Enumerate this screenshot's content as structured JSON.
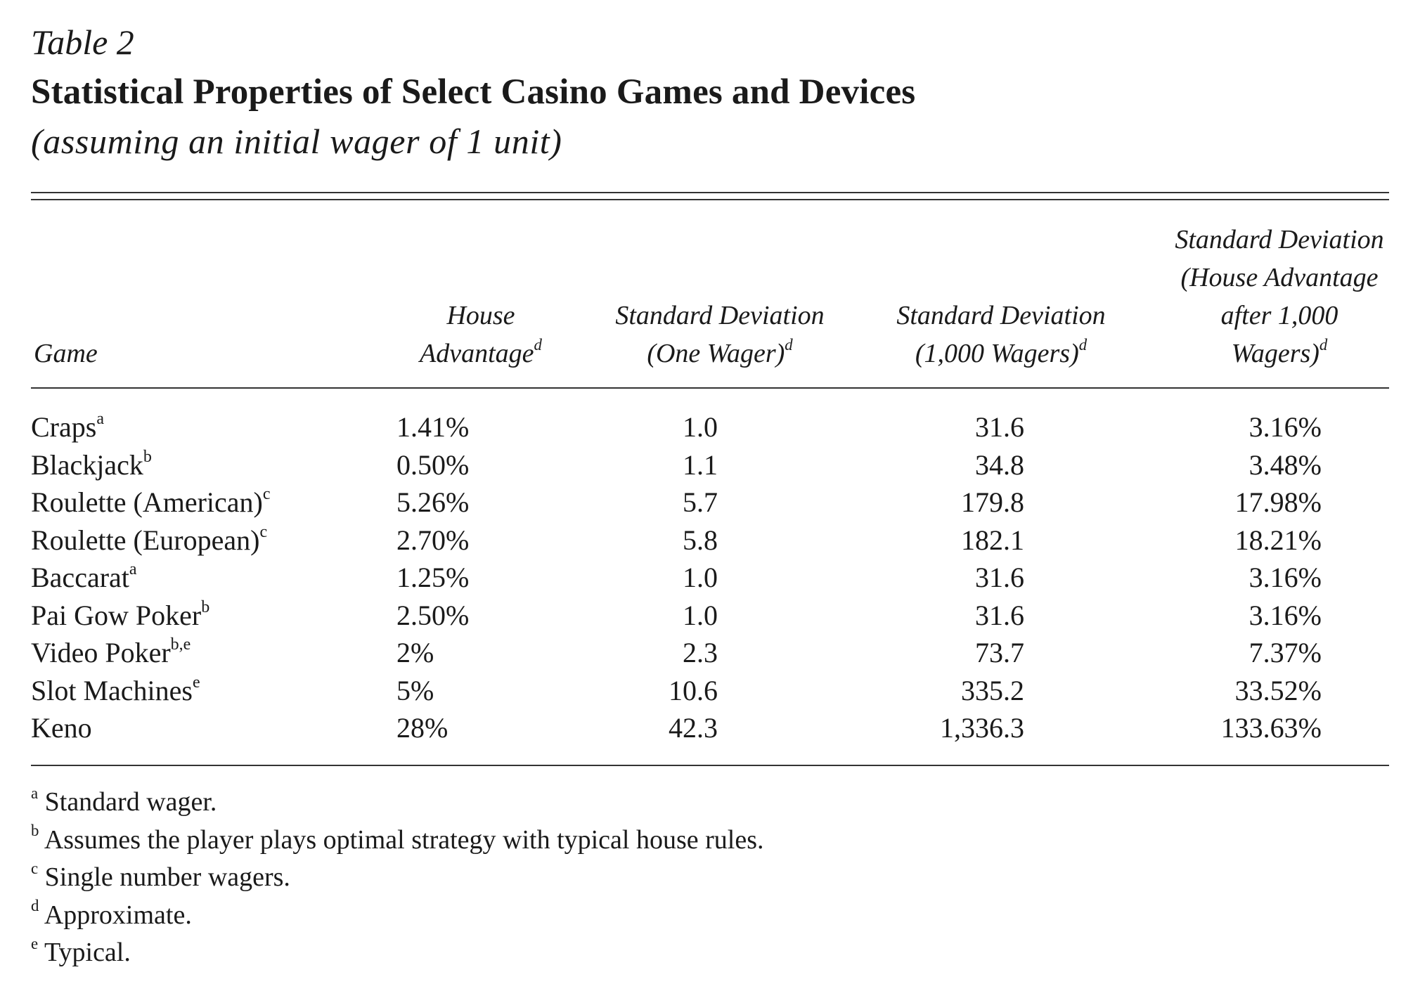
{
  "table_label": "Table 2",
  "title": "Statistical Properties of Select Casino Games and Devices",
  "subtitle": "(assuming an initial wager of 1 unit)",
  "headers": {
    "game": "Game",
    "c1_line1": "House",
    "c1_line2": "Advantage",
    "c1_sup": "d",
    "c2_line1": "Standard Deviation",
    "c2_line2": "(One Wager)",
    "c2_sup": "d",
    "c3_line1": "Standard Deviation",
    "c3_line2": "(1,000 Wagers)",
    "c3_sup": "d",
    "c4_line1": "Standard Deviation",
    "c4_line2": "(House Advantage",
    "c4_line3": "after 1,000",
    "c4_line4": "Wagers)",
    "c4_sup": "d"
  },
  "rows": [
    {
      "game": "Craps",
      "sup": "a",
      "house_advantage": "1.41%",
      "sd_one": "1.0",
      "sd_1000": "31.6",
      "sd_ha": "3.16%"
    },
    {
      "game": "Blackjack",
      "sup": "b",
      "house_advantage": "0.50%",
      "sd_one": "1.1",
      "sd_1000": "34.8",
      "sd_ha": "3.48%"
    },
    {
      "game": "Roulette (American)",
      "sup": "c",
      "house_advantage": "5.26%",
      "sd_one": "5.7",
      "sd_1000": "179.8",
      "sd_ha": "17.98%"
    },
    {
      "game": "Roulette (European)",
      "sup": "c",
      "house_advantage": "2.70%",
      "sd_one": "5.8",
      "sd_1000": "182.1",
      "sd_ha": "18.21%"
    },
    {
      "game": "Baccarat",
      "sup": "a",
      "house_advantage": "1.25%",
      "sd_one": "1.0",
      "sd_1000": "31.6",
      "sd_ha": "3.16%"
    },
    {
      "game": "Pai Gow Poker",
      "sup": "b",
      "house_advantage": "2.50%",
      "sd_one": "1.0",
      "sd_1000": "31.6",
      "sd_ha": "3.16%"
    },
    {
      "game": "Video Poker",
      "sup": "b,e",
      "house_advantage": "2%",
      "sd_one": "2.3",
      "sd_1000": "73.7",
      "sd_ha": "7.37%"
    },
    {
      "game": "Slot Machines",
      "sup": "e",
      "house_advantage": "5%",
      "sd_one": "10.6",
      "sd_1000": "335.2",
      "sd_ha": "33.52%"
    },
    {
      "game": "Keno",
      "sup": "",
      "house_advantage": "28%",
      "sd_one": "42.3",
      "sd_1000": "1,336.3",
      "sd_ha": "133.63%"
    }
  ],
  "footnotes": [
    {
      "mark": "a",
      "text": "Standard wager."
    },
    {
      "mark": "b",
      "text": "Assumes the player plays optimal strategy with typical house rules."
    },
    {
      "mark": "c",
      "text": "Single number wagers."
    },
    {
      "mark": "d",
      "text": "Approximate."
    },
    {
      "mark": "e",
      "text": "Typical."
    }
  ]
}
